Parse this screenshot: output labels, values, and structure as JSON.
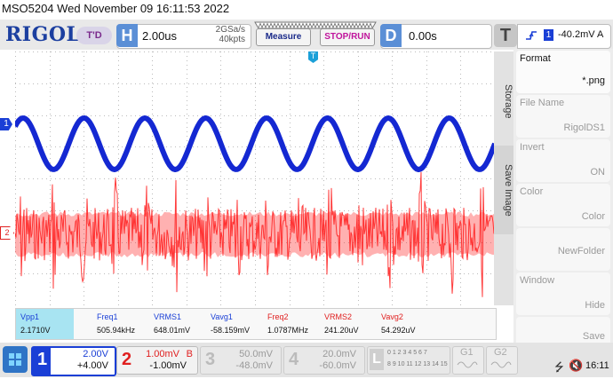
{
  "header": {
    "model_timestamp": "MSO5204  Wed November 09 16:11:53 2022",
    "logo": "RIGOL",
    "mode_badge": "T'D"
  },
  "timebase": {
    "letter": "H",
    "value": "2.00us",
    "sample_rate": "2GSa/s",
    "memory_depth": "40kpts"
  },
  "buttons": {
    "measure": "Measure",
    "stop_run": "STOP/RUN"
  },
  "delay": {
    "letter": "D",
    "value": "0.00s"
  },
  "trigger": {
    "letter": "T",
    "edge_icon": "rising-edge-icon",
    "channel": "1",
    "level": "-40.2mV",
    "coupling": "A"
  },
  "markers": {
    "ch1": "1",
    "ch2": "2",
    "trigger_pos": "T"
  },
  "side_tabs": {
    "storage": "Storage",
    "save_image": "Save Image"
  },
  "side_menu": [
    {
      "title": "Format",
      "value": "*.png",
      "enabled": true
    },
    {
      "title": "File Name",
      "value": "RigolDS1",
      "enabled": false
    },
    {
      "title": "Invert",
      "value": "ON",
      "enabled": false
    },
    {
      "title": "Color",
      "value": "Color",
      "enabled": false
    },
    {
      "title": "",
      "value": "NewFolder",
      "enabled": false
    },
    {
      "title": "Window",
      "value": "Hide",
      "enabled": false
    },
    {
      "title": "",
      "value": "Save",
      "enabled": false
    }
  ],
  "measurements": [
    {
      "label": "Vpp1",
      "value": "2.1710V",
      "color": "#1a3fd6",
      "highlight": true
    },
    {
      "label": "Freq1",
      "value": "505.94kHz",
      "color": "#1a3fd6",
      "highlight": false
    },
    {
      "label": "VRMS1",
      "value": "648.01mV",
      "color": "#1a3fd6",
      "highlight": false
    },
    {
      "label": "Vavg1",
      "value": "-58.159mV",
      "color": "#1a3fd6",
      "highlight": false
    },
    {
      "label": "Freq2",
      "value": "1.0787MHz",
      "color": "#e02020",
      "highlight": false
    },
    {
      "label": "VRMS2",
      "value": "241.20uV",
      "color": "#e02020",
      "highlight": false
    },
    {
      "label": "Vavg2",
      "value": "54.292uV",
      "color": "#e02020",
      "highlight": false
    }
  ],
  "channels": [
    {
      "num": "1",
      "scale": "2.00V",
      "offset": "+4.00V",
      "suffix": "",
      "active": true
    },
    {
      "num": "2",
      "scale": "1.00mV",
      "offset": "-1.00mV",
      "suffix": "B",
      "active": true
    },
    {
      "num": "3",
      "scale": "50.0mV",
      "offset": "-48.0mV",
      "suffix": "",
      "active": false
    },
    {
      "num": "4",
      "scale": "20.0mV",
      "offset": "-60.0mV",
      "suffix": "",
      "active": false
    }
  ],
  "logic": {
    "letter": "L",
    "row1": "0 1 2 3 4 5 6 7",
    "row2": "8 9 10 11 12 13 14 15"
  },
  "gen": {
    "g1": "G1",
    "g2": "G2"
  },
  "status": {
    "time": "16:11"
  },
  "colors": {
    "ch1": "#1428d2",
    "ch2": "#ff1010",
    "accent": "#1c3fa0"
  }
}
